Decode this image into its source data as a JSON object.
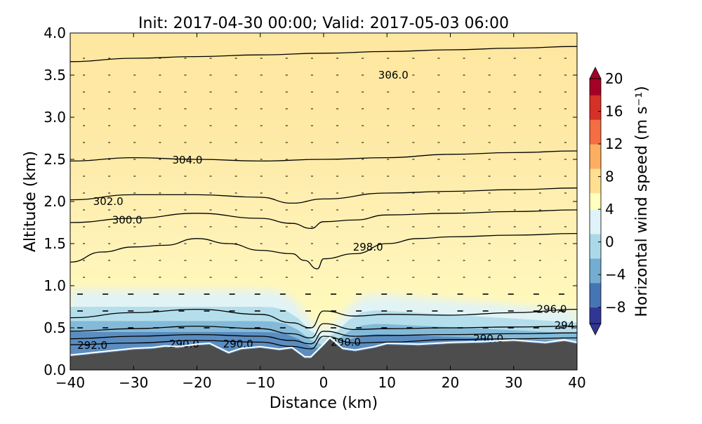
{
  "chart_data": {
    "type": "heatmap",
    "title": "Init: 2017-04-30 00:00; Valid: 2017-05-03 06:00",
    "xlabel": "Distance (km)",
    "ylabel": "Altitude (km)",
    "xlim": [
      -40,
      40
    ],
    "ylim": [
      0,
      4
    ],
    "x_ticks": [
      -40,
      -30,
      -20,
      -10,
      0,
      10,
      20,
      30,
      40
    ],
    "x_tick_labels": [
      "−40",
      "−30",
      "−20",
      "−10",
      "0",
      "10",
      "20",
      "30",
      "40"
    ],
    "y_ticks": [
      0,
      0.5,
      1,
      1.5,
      2,
      2.5,
      3,
      3.5,
      4
    ],
    "y_tick_labels": [
      "0.0",
      "0.5",
      "1.0",
      "1.5",
      "2.0",
      "2.5",
      "3.0",
      "3.5",
      "4.0"
    ],
    "colorbar": {
      "label": "Horizontal wind speed (m s⁻¹)",
      "range": [
        -10,
        20
      ],
      "extend": "both",
      "ticks": [
        -8,
        -4,
        0,
        4,
        8,
        12,
        16,
        20
      ],
      "tick_labels": [
        "−8",
        "−4",
        "0",
        "4",
        "8",
        "12",
        "16",
        "20"
      ],
      "colormap": "RdYlBu_r",
      "colors": [
        "#313695",
        "#4575b4",
        "#74add1",
        "#abd9e9",
        "#e0f3f8",
        "#ffffbf",
        "#fee090",
        "#fdae61",
        "#f46d43",
        "#d73027",
        "#a50026"
      ]
    },
    "terrain": {
      "color": "#4d4d4d",
      "x": [
        -40,
        -35,
        -30,
        -27,
        -25,
        -23,
        -20,
        -18,
        -15,
        -13,
        -10,
        -7,
        -5,
        -3,
        -2,
        0,
        1,
        3,
        5,
        8,
        10,
        15,
        20,
        25,
        30,
        35,
        38,
        40
      ],
      "height_km": [
        0.16,
        0.2,
        0.24,
        0.25,
        0.27,
        0.26,
        0.29,
        0.3,
        0.19,
        0.24,
        0.26,
        0.23,
        0.25,
        0.14,
        0.14,
        0.29,
        0.37,
        0.24,
        0.22,
        0.26,
        0.3,
        0.29,
        0.31,
        0.32,
        0.34,
        0.31,
        0.34,
        0.31
      ]
    },
    "isentropes": {
      "units": "K",
      "lines": [
        {
          "theta": 290,
          "x": [
            -40,
            -30,
            -20,
            -10,
            -5,
            -2,
            0,
            5,
            10,
            20,
            30,
            40
          ],
          "y": [
            0.3,
            0.32,
            0.35,
            0.33,
            0.28,
            0.25,
            0.4,
            0.32,
            0.33,
            0.36,
            0.37,
            0.38
          ]
        },
        {
          "theta": 292,
          "x": [
            -40,
            -30,
            -20,
            -10,
            -5,
            -2,
            0,
            5,
            10,
            20,
            30,
            40
          ],
          "y": [
            0.37,
            0.4,
            0.42,
            0.4,
            0.35,
            0.31,
            0.46,
            0.4,
            0.41,
            0.42,
            0.43,
            0.44
          ]
        },
        {
          "theta": 294,
          "x": [
            -40,
            -30,
            -20,
            -10,
            -5,
            -2,
            0,
            5,
            10,
            20,
            30,
            40
          ],
          "y": [
            0.46,
            0.49,
            0.52,
            0.49,
            0.43,
            0.38,
            0.55,
            0.48,
            0.49,
            0.5,
            0.51,
            0.52
          ]
        },
        {
          "theta": 296,
          "x": [
            -40,
            -30,
            -20,
            -10,
            -5,
            -2,
            0,
            5,
            10,
            20,
            30,
            40
          ],
          "y": [
            0.62,
            0.68,
            0.72,
            0.66,
            0.56,
            0.5,
            0.7,
            0.64,
            0.66,
            0.65,
            0.68,
            0.72
          ]
        },
        {
          "theta": 298,
          "x": [
            -40,
            -35,
            -30,
            -25,
            -20,
            -15,
            -10,
            -5,
            -3,
            -1,
            0,
            5,
            10,
            15,
            20,
            30,
            40
          ],
          "y": [
            1.28,
            1.4,
            1.46,
            1.48,
            1.56,
            1.5,
            1.42,
            1.38,
            1.3,
            1.2,
            1.32,
            1.38,
            1.5,
            1.56,
            1.58,
            1.6,
            1.62
          ]
        },
        {
          "theta": 300,
          "x": [
            -40,
            -30,
            -20,
            -10,
            -5,
            -2,
            0,
            5,
            10,
            20,
            30,
            40
          ],
          "y": [
            1.75,
            1.8,
            1.86,
            1.8,
            1.74,
            1.68,
            1.76,
            1.78,
            1.84,
            1.86,
            1.88,
            1.9
          ]
        },
        {
          "theta": 302,
          "x": [
            -40,
            -30,
            -20,
            -10,
            -5,
            0,
            10,
            20,
            30,
            40
          ],
          "y": [
            2.02,
            2.08,
            2.08,
            2.05,
            1.98,
            2.03,
            2.1,
            2.12,
            2.14,
            2.16
          ]
        },
        {
          "theta": 304,
          "x": [
            -40,
            -30,
            -20,
            -10,
            0,
            10,
            20,
            30,
            40
          ],
          "y": [
            2.48,
            2.52,
            2.5,
            2.48,
            2.5,
            2.52,
            2.56,
            2.58,
            2.6
          ]
        },
        {
          "theta": 306,
          "x": [
            -40,
            -30,
            -20,
            -10,
            0,
            10,
            20,
            30,
            40
          ],
          "y": [
            3.66,
            3.7,
            3.72,
            3.74,
            3.76,
            3.78,
            3.8,
            3.82,
            3.84
          ]
        }
      ],
      "labels": [
        {
          "text": "306.0",
          "x": 11,
          "y": 3.5
        },
        {
          "text": "304.0",
          "x": -21.5,
          "y": 2.49
        },
        {
          "text": "302.0",
          "x": -34,
          "y": 2.0
        },
        {
          "text": "300.0",
          "x": -31,
          "y": 1.78
        },
        {
          "text": "298.0",
          "x": 7,
          "y": 1.46
        },
        {
          "text": "296.0",
          "x": 36,
          "y": 0.72
        },
        {
          "text": "294",
          "x": 38,
          "y": 0.53
        },
        {
          "text": "292.0",
          "x": -36.5,
          "y": 0.29
        },
        {
          "text": "290.0",
          "x": -22,
          "y": 0.31
        },
        {
          "text": "290.0",
          "x": -13.5,
          "y": 0.31
        },
        {
          "text": "290.0",
          "x": 3.5,
          "y": 0.33
        },
        {
          "text": "290.0",
          "x": 26,
          "y": 0.37
        }
      ]
    }
  }
}
